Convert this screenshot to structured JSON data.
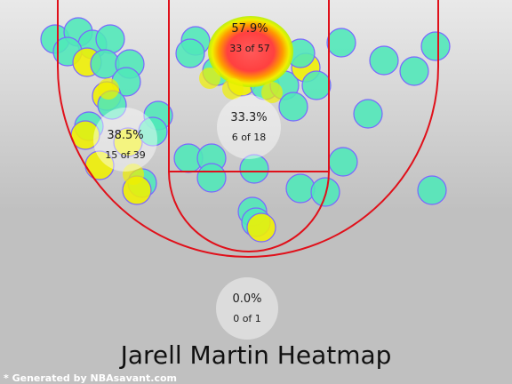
{
  "chart_data": {
    "type": "heatmap",
    "title": "Jarell Martin Heatmap",
    "credit": "* Generated by NBAsavant.com",
    "zones": [
      {
        "id": "restricted",
        "pct": "57.9%",
        "count": "33 of 57"
      },
      {
        "id": "paint",
        "pct": "33.3%",
        "count": "6 of 18"
      },
      {
        "id": "left-midrange",
        "pct": "38.5%",
        "count": "15 of 39"
      },
      {
        "id": "backcourt",
        "pct": "0.0%",
        "count": "0 of 1"
      }
    ],
    "colors": {
      "background_top": "#e9e9e9",
      "background_bottom": "#c0c0c0",
      "court_lines": "#e0101a",
      "shot_cold": "#4fe8b8",
      "shot_warm": "#f0f000",
      "shot_hot": "#ff5a5a",
      "shot_outline": "#7a66ff"
    }
  }
}
